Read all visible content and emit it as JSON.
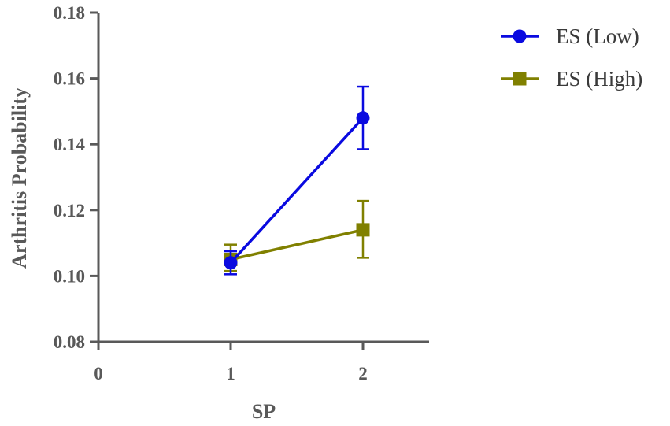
{
  "chart_data": {
    "type": "line",
    "title": "",
    "xlabel": "SP",
    "ylabel": "Arthritis Probability",
    "xlim": [
      0,
      2.5
    ],
    "ylim": [
      0.08,
      0.18
    ],
    "x_ticks": [
      "0",
      "1",
      "2"
    ],
    "y_ticks": [
      "0.08",
      "0.10",
      "0.12",
      "0.14",
      "0.16",
      "0.18"
    ],
    "grid": false,
    "legend_position": "top-right",
    "series": [
      {
        "name": "ES (Low)",
        "color": "#0a0ae0",
        "marker": "circle",
        "x": [
          1,
          2
        ],
        "y": [
          0.104,
          0.148
        ],
        "error_low": [
          0.1005,
          0.1385
        ],
        "error_high": [
          0.1075,
          0.1575
        ]
      },
      {
        "name": "ES (High)",
        "color": "#808000",
        "marker": "square",
        "x": [
          1,
          2
        ],
        "y": [
          0.105,
          0.114
        ],
        "error_low": [
          0.1015,
          0.1055
        ],
        "error_high": [
          0.1095,
          0.1228
        ]
      }
    ]
  }
}
